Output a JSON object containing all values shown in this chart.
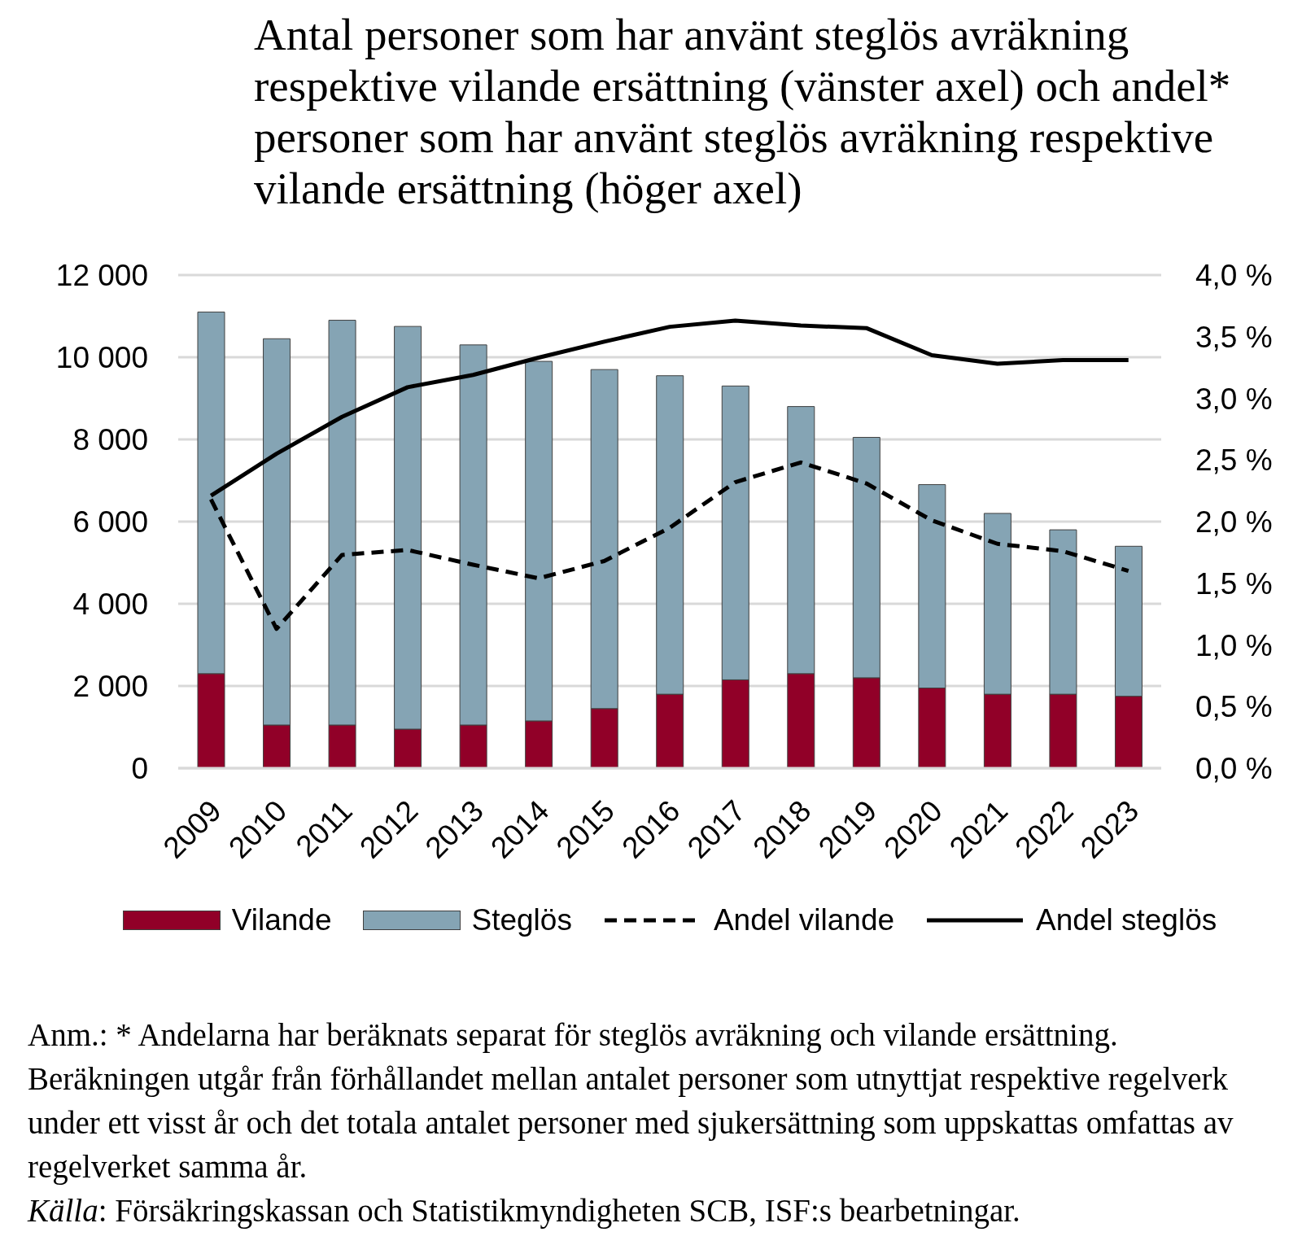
{
  "chart_data": {
    "type": "bar",
    "title": "Antal personer som har använt steglös avräkning respektive vilande ersättning (vänster axel) och andel* personer som har använt steglös avräkning respektive vilande ersättning (höger axel)",
    "categories": [
      "2009",
      "2010",
      "2011",
      "2012",
      "2013",
      "2014",
      "2015",
      "2016",
      "2017",
      "2018",
      "2019",
      "2020",
      "2021",
      "2022",
      "2023"
    ],
    "series": [
      {
        "name": "Vilande",
        "color": "#910028",
        "values": [
          2300,
          1050,
          1050,
          950,
          1050,
          1150,
          1450,
          1800,
          2150,
          2300,
          2200,
          1950,
          1800,
          1800,
          1750
        ]
      },
      {
        "name": "Steglös",
        "color": "#85a4b4",
        "values": [
          8800,
          9400,
          9850,
          9800,
          9250,
          8750,
          8250,
          7750,
          7150,
          6500,
          5850,
          4950,
          4400,
          4000,
          3650
        ]
      },
      {
        "name": "Andel vilande",
        "type": "line",
        "axis": "y2",
        "color": "#000000",
        "line_style": "dashed",
        "values": [
          2.18,
          1.13,
          1.73,
          1.77,
          1.65,
          1.54,
          1.68,
          1.95,
          2.32,
          2.48,
          2.31,
          2.01,
          1.82,
          1.76,
          1.6
        ]
      },
      {
        "name": "Andel steglös",
        "type": "line",
        "axis": "y2",
        "color": "#000000",
        "line_style": "solid",
        "values": [
          2.21,
          2.55,
          2.85,
          3.09,
          3.19,
          3.33,
          3.46,
          3.58,
          3.63,
          3.59,
          3.57,
          3.35,
          3.28,
          3.31,
          3.31
        ]
      }
    ],
    "stacked": true,
    "ylim": [
      0,
      12000
    ],
    "yticks": [
      0,
      {
        "value": 2000,
        "label": "2 000"
      },
      {
        "value": 4000,
        "label": "4 000"
      },
      {
        "value": 6000,
        "label": "6 000"
      },
      {
        "value": 8000,
        "label": "8 000"
      },
      {
        "value": 10000,
        "label": "10 000"
      },
      {
        "value": 12000,
        "label": "12 000"
      }
    ],
    "y2lim": [
      0,
      4
    ],
    "y2ticks": [
      {
        "value": 0,
        "label": "0,0 %"
      },
      {
        "value": 0.5,
        "label": "0,5 %"
      },
      {
        "value": 1,
        "label": "1,0 %"
      },
      {
        "value": 1.5,
        "label": "1,5 %"
      },
      {
        "value": 2,
        "label": "2,0 %"
      },
      {
        "value": 2.5,
        "label": "2,5 %"
      },
      {
        "value": 3,
        "label": "3,0 %"
      },
      {
        "value": 3.5,
        "label": "3,5 %"
      },
      {
        "value": 4,
        "label": "4,0 %"
      }
    ],
    "grid": "y",
    "legend": "bottom",
    "annotations": [
      "Anm.: * Andelarna har beräknats separat för steglös avräkning och vilande ersättning. Beräkningen utgår från förhållandet mellan antalet personer som utnyttjat respektive regelverk under ett visst år och det totala antalet personer med sjukersättning som uppskattas omfattas av regelverket samma år.",
      "Källa: Försäkringskassan och Statistikmyndigheten SCB, ISF:s bearbetningar."
    ]
  }
}
